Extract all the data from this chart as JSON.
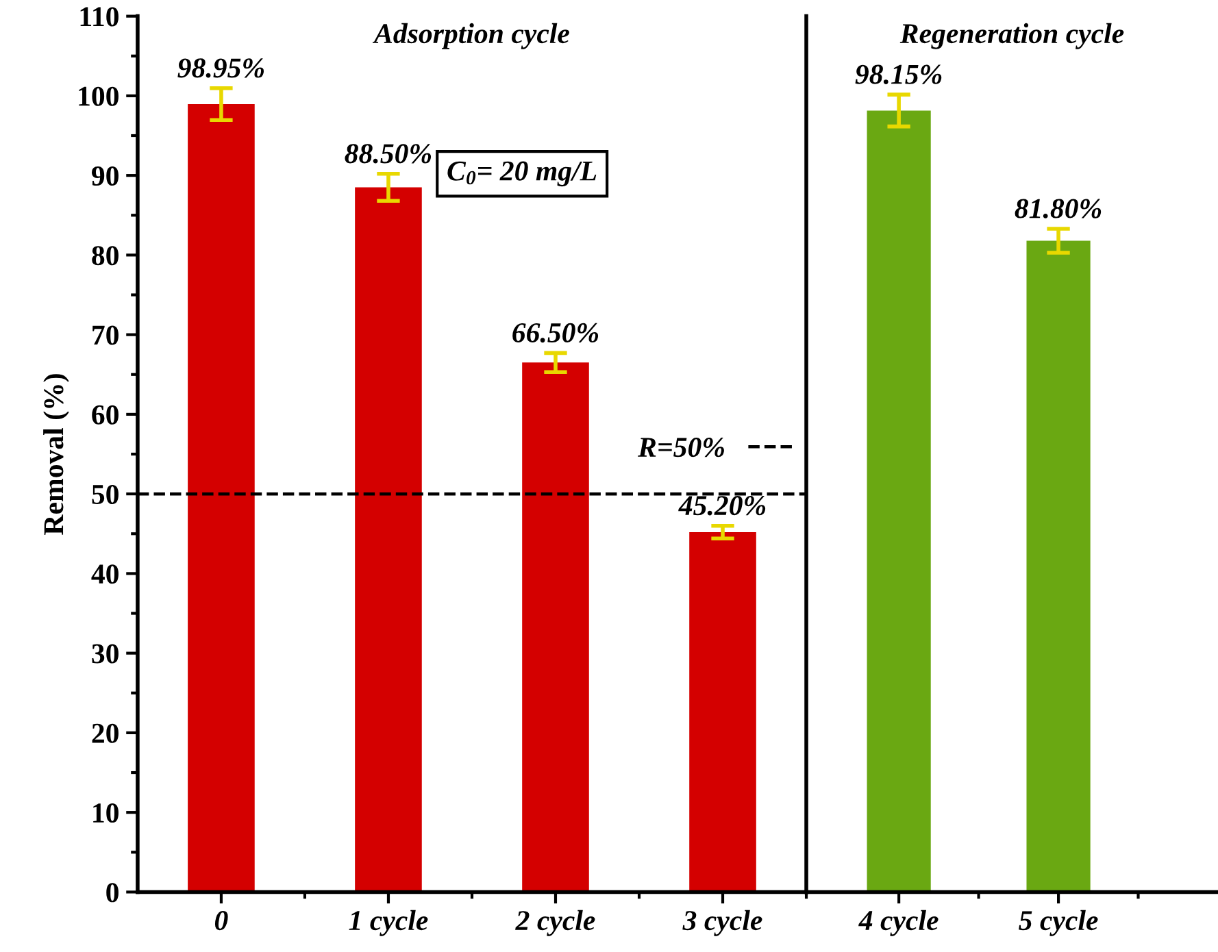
{
  "chart_data": [
    {
      "type": "bar",
      "title": "Adsorption cycle",
      "ylabel": "Removal (%)",
      "categories": [
        "0",
        "1 cycle",
        "2 cycle",
        "3 cycle"
      ],
      "values": [
        98.95,
        88.5,
        66.5,
        45.2
      ],
      "colors": [
        "#d40000",
        "#d40000",
        "#d40000",
        "#d40000"
      ],
      "errors": [
        2.0,
        1.7,
        1.2,
        0.8
      ],
      "value_labels": [
        "98.95%",
        "88.50%",
        "66.50%",
        "45.20%"
      ],
      "ylim": [
        0,
        110
      ],
      "yticks": [
        0,
        10,
        20,
        30,
        40,
        50,
        60,
        70,
        80,
        90,
        100,
        110
      ],
      "grid": false,
      "legend": "right",
      "ref_lines": [
        {
          "axis": "y",
          "value": 50,
          "label": "R=50%",
          "color": "#000000",
          "line_style": "dashed"
        }
      ],
      "annotations": [
        "C$_{0}$= 20 mg/L"
      ]
    },
    {
      "type": "bar",
      "title": "Regeneration cycle",
      "categories": [
        "4 cycle",
        "5 cycle"
      ],
      "values": [
        98.15,
        81.8
      ],
      "colors": [
        "#6aa812",
        "#6aa812"
      ],
      "errors": [
        2.0,
        1.5
      ],
      "value_labels": [
        "98.15%",
        "81.80%"
      ],
      "ylim": [
        0,
        110
      ],
      "yticks": [
        0,
        10,
        20,
        30,
        40,
        50,
        60,
        70,
        80,
        90,
        100,
        110
      ],
      "tick_labels": "x",
      "grid": false
    }
  ]
}
